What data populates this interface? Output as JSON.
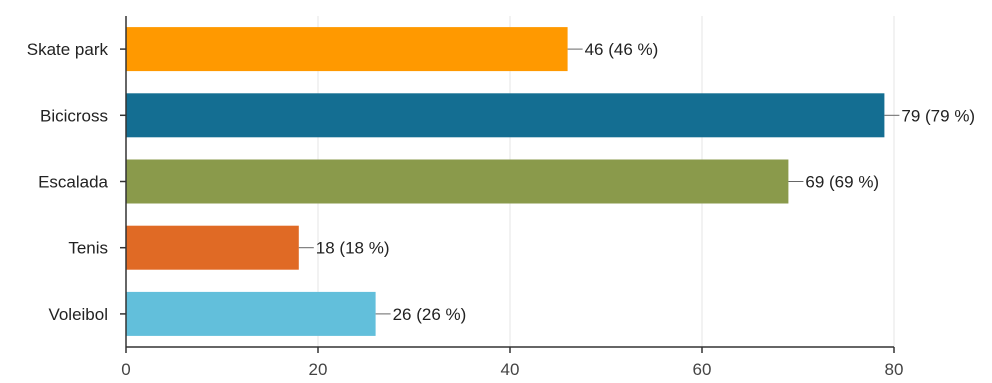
{
  "chart_data": {
    "type": "bar",
    "orientation": "horizontal",
    "categories": [
      "Skate park",
      "Bicicross",
      "Escalada",
      "Tenis",
      "Voleibol"
    ],
    "values": [
      46,
      79,
      69,
      18,
      26
    ],
    "value_labels": [
      "46 (46 %)",
      "79 (79 %)",
      "69 (69 %)",
      "18 (18 %)",
      "26 (26 %)"
    ],
    "colors": [
      "#ff9900",
      "#146e92",
      "#8a9a4b",
      "#e06a25",
      "#62bfdb"
    ],
    "xlim": [
      0,
      80
    ],
    "xticks": [
      0,
      20,
      40,
      60,
      80
    ],
    "grid": true,
    "legend": "none",
    "title": "",
    "xlabel": "",
    "ylabel": ""
  }
}
